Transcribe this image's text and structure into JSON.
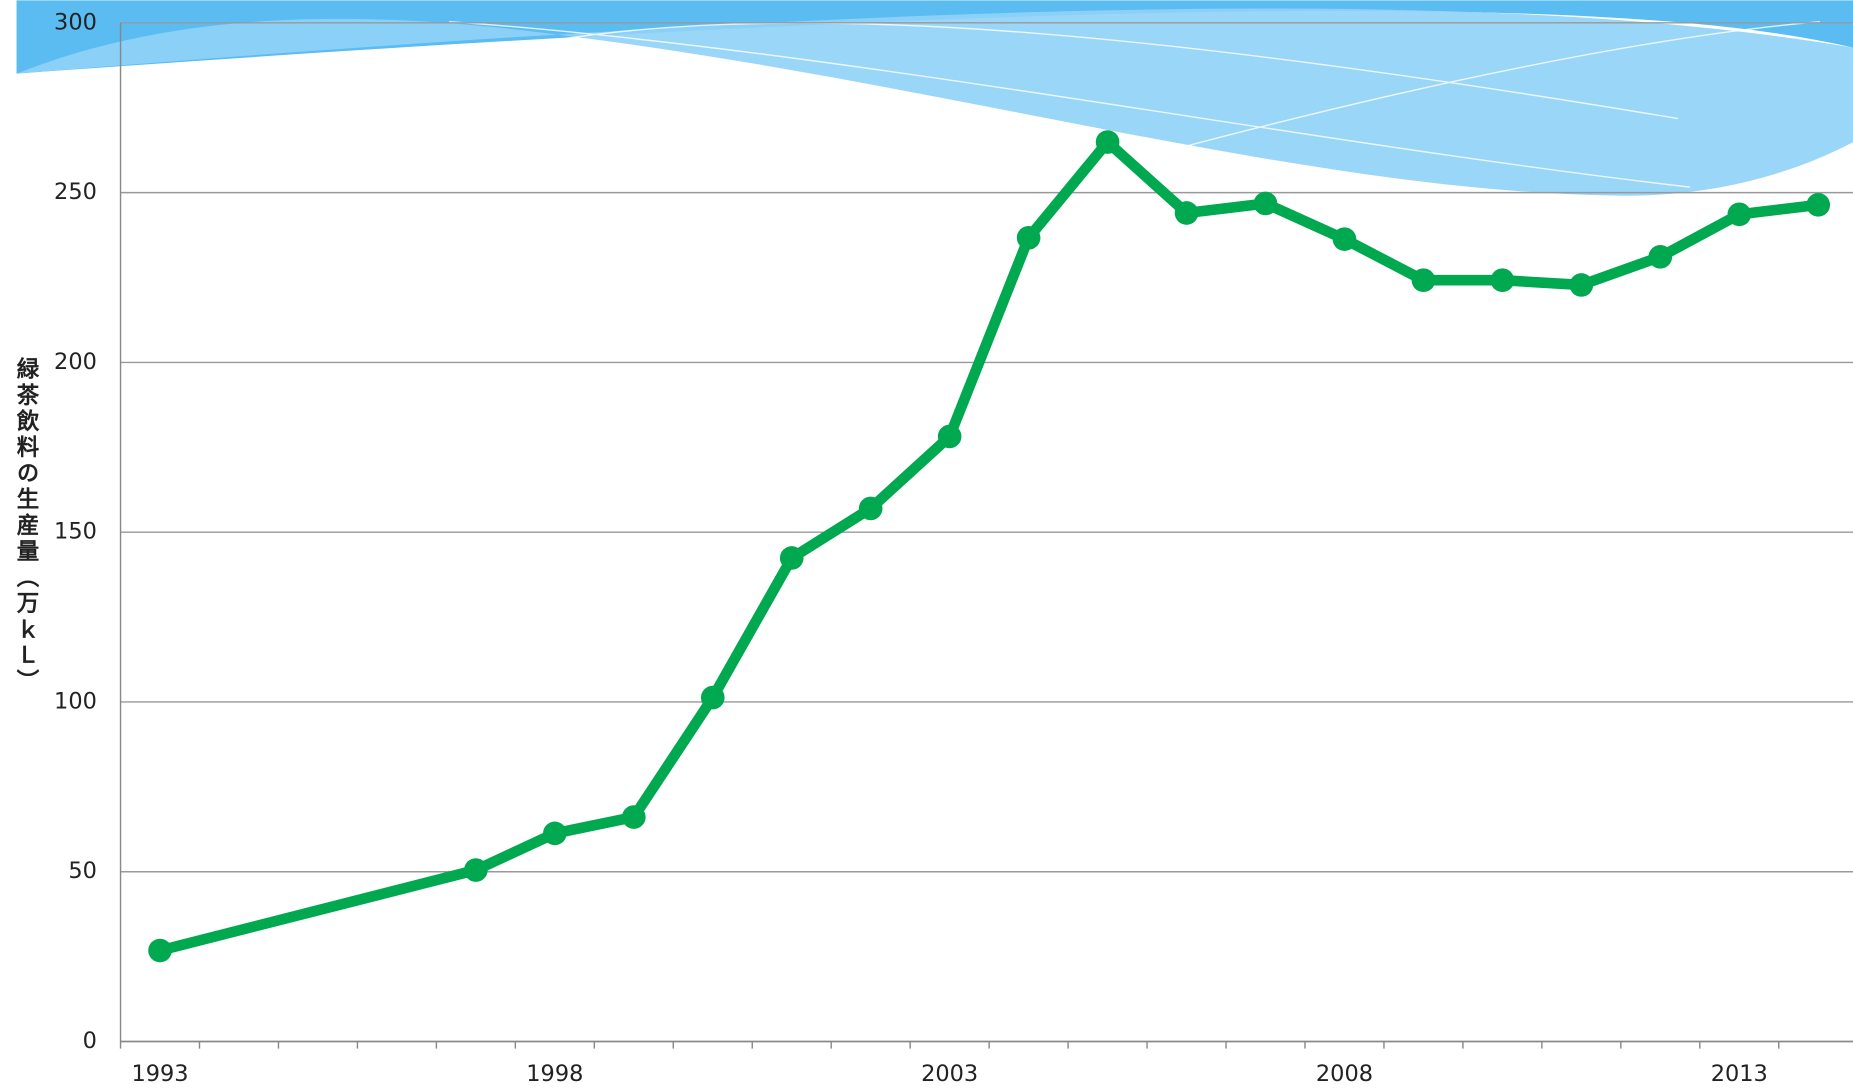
{
  "chart_data": {
    "type": "line",
    "y_label": "緑茶飲料の生産量（万ｋＬ）",
    "x": [
      1993,
      1997,
      1998,
      1999,
      2000,
      2001,
      2002,
      2003,
      2004,
      2005,
      2006,
      2007,
      2008,
      2009,
      2010,
      2011,
      2012,
      2013,
      2014
    ],
    "series": [
      {
        "color": "#00a84f",
        "values": [
          26.8,
          50.5,
          61.3,
          66.1,
          101.3,
          142.4,
          157,
          178.2,
          236.7,
          264.9,
          244,
          246.8,
          236.3,
          224.2,
          224.2,
          222.8,
          231.1,
          243.6,
          246.4
        ]
      }
    ],
    "xlim": [
      1992.5,
      2014.5
    ],
    "xticks": [
      1993,
      1998,
      2003,
      2008,
      2013
    ],
    "ylim": [
      0,
      300
    ],
    "yticks": [
      0,
      50,
      100,
      150,
      200,
      250,
      300
    ],
    "grid": true
  }
}
